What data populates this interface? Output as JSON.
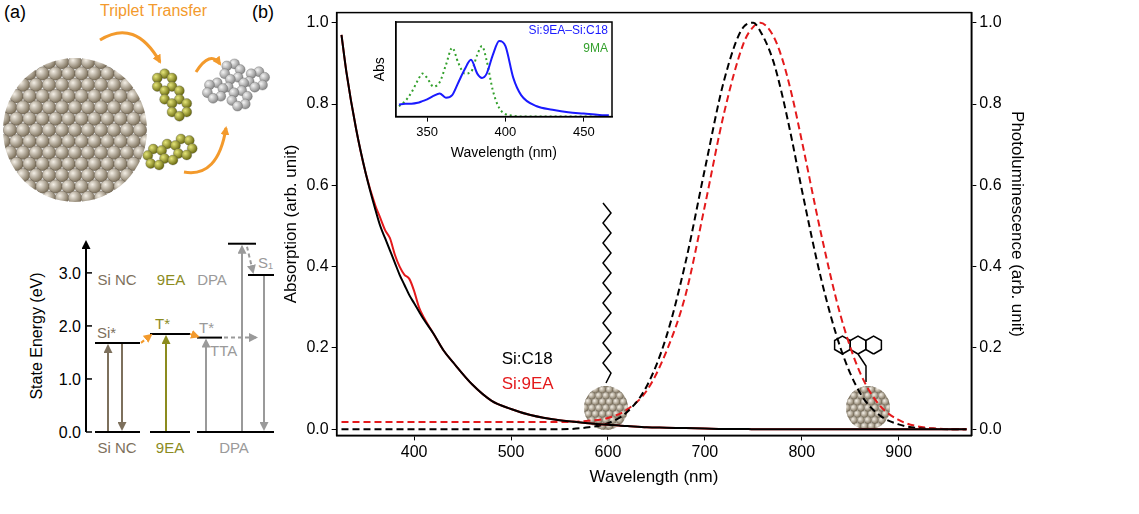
{
  "diagram": {
    "panel": "(a)",
    "annotation": "Triplet Transfer",
    "axis": {
      "title": "State Energy (eV)",
      "ylim": [
        0,
        3.62
      ],
      "yticks": [
        {
          "value": 0,
          "label": "0.0"
        },
        {
          "value": 1,
          "label": "1.0"
        },
        {
          "value": 2,
          "label": "2.0"
        },
        {
          "value": 3,
          "label": "3.0"
        }
      ]
    },
    "columns": [
      {
        "name": "Si NC",
        "color": "#7d705c",
        "levels": [
          {
            "label": "Si*",
            "energy": 1.68
          }
        ]
      },
      {
        "name": "9EA",
        "color": "#8c8c1e",
        "levels": [
          {
            "label": "T*",
            "energy": 1.85
          }
        ]
      },
      {
        "name": "DPA",
        "color": "#9a9a9a",
        "levels": [
          {
            "label": "T*",
            "energy": 1.78,
            "process": "TTA"
          },
          {
            "label": "S₁",
            "energy": 2.96
          },
          {
            "energy": 3.55
          }
        ]
      }
    ]
  },
  "chart_data": [
    {
      "type": "line",
      "panel": "(b)",
      "xlabel": "Wavelength (nm)",
      "ylabel": "Absorption (arb. unit)",
      "y2label": "Photoluminescence (arb. unit)",
      "x": [
        325,
        330,
        340,
        350,
        360,
        365,
        370,
        375,
        380,
        385,
        390,
        395,
        400,
        405,
        410,
        420,
        430,
        440,
        460,
        480,
        500,
        520,
        550,
        580,
        600,
        620,
        640,
        660,
        680,
        700,
        720,
        740,
        750,
        757,
        770,
        780,
        790,
        800,
        820,
        840,
        860,
        880,
        900,
        920,
        940,
        960,
        970
      ],
      "xlim": [
        320,
        975
      ],
      "xticks": [
        400,
        500,
        600,
        700,
        800,
        900
      ],
      "ylim": [
        -0.015,
        1.025
      ],
      "yticks": [
        {
          "value": 0,
          "label": "0.0"
        },
        {
          "value": 0.2,
          "label": "0.2"
        },
        {
          "value": 0.4,
          "label": "0.4"
        },
        {
          "value": 0.6,
          "label": "0.6"
        },
        {
          "value": 0.8,
          "label": "0.8"
        },
        {
          "value": 1,
          "label": "1.0"
        }
      ],
      "y2lim": [
        -0.015,
        1.025
      ],
      "y2ticks": [
        {
          "value": 0,
          "label": "0.0"
        },
        {
          "value": 0.2,
          "label": "0.2"
        },
        {
          "value": 0.4,
          "label": "0.4"
        },
        {
          "value": 0.6,
          "label": "0.6"
        },
        {
          "value": 0.8,
          "label": "0.8"
        },
        {
          "value": 1,
          "label": "1.0"
        }
      ],
      "grid": false,
      "legend": "lower left",
      "series": [
        {
          "name": "Si:C18",
          "color": "#000000",
          "line_style": "solid",
          "values": [
            0.97,
            0.88,
            0.74,
            0.63,
            0.54,
            0.5,
            0.47,
            0.44,
            0.41,
            0.38,
            0.355,
            0.33,
            0.31,
            0.29,
            0.27,
            0.235,
            0.195,
            0.165,
            0.11,
            0.07,
            0.05,
            0.035,
            0.022,
            0.015,
            0.011,
            0.008,
            0.005,
            0.004,
            0.003,
            0.002,
            0.001,
            0.001,
            0,
            0,
            0,
            0,
            0,
            0,
            0,
            0,
            0,
            0,
            0,
            0,
            0,
            0,
            0
          ]
        },
        {
          "name": "Si:9EA",
          "color": "#e41a1c",
          "line_style": "solid",
          "values": [
            0.97,
            0.88,
            0.74,
            0.63,
            0.55,
            0.52,
            0.49,
            0.47,
            0.43,
            0.4,
            0.38,
            0.37,
            0.34,
            0.3,
            0.275,
            0.235,
            0.195,
            0.165,
            0.11,
            0.07,
            0.05,
            0.035,
            0.022,
            0.015,
            0.011,
            0.008,
            0.005,
            0.004,
            0.003,
            0.002,
            0.001,
            0.001,
            0,
            0,
            0,
            0,
            0,
            0,
            0,
            0,
            0,
            0,
            0,
            0,
            0,
            0,
            0
          ]
        },
        {
          "name": "Si:C18",
          "color": "#000000",
          "line_style": "dashed",
          "axis": "y2",
          "values": [
            0,
            0,
            0,
            0,
            0,
            0,
            0,
            0,
            0,
            0,
            0,
            0,
            0,
            0,
            0,
            0,
            0,
            0,
            0,
            0,
            0,
            0,
            0,
            0.005,
            0.015,
            0.043,
            0.106,
            0.226,
            0.41,
            0.64,
            0.86,
            0.99,
            1.0,
            0.98,
            0.91,
            0.82,
            0.71,
            0.59,
            0.37,
            0.2,
            0.09,
            0.035,
            0.012,
            0.003,
            0.001,
            0,
            0
          ]
        },
        {
          "name": "Si:9EA",
          "color": "#e41a1c",
          "line_style": "dashed",
          "axis": "y2",
          "values": [
            0.018,
            0.018,
            0.018,
            0.018,
            0.018,
            0.018,
            0.018,
            0.018,
            0.018,
            0.018,
            0.018,
            0.018,
            0.018,
            0.018,
            0.018,
            0.018,
            0.018,
            0.018,
            0.018,
            0.018,
            0.018,
            0.018,
            0.018,
            0.021,
            0.028,
            0.049,
            0.095,
            0.19,
            0.33,
            0.55,
            0.78,
            0.95,
            0.99,
            1.0,
            0.97,
            0.91,
            0.82,
            0.71,
            0.48,
            0.28,
            0.14,
            0.06,
            0.023,
            0.007,
            0.002,
            0,
            0
          ]
        }
      ]
    },
    {
      "type": "line",
      "xlabel": "Wavelength (nm)",
      "ylabel": "Abs",
      "x": [
        332,
        336,
        340,
        344,
        347,
        350,
        354,
        358,
        362,
        366,
        370,
        374,
        378,
        382,
        385,
        388,
        392,
        396,
        400,
        405,
        410,
        420,
        430,
        440,
        450,
        460,
        466
      ],
      "xlim": [
        330,
        468
      ],
      "xticks": [
        350,
        400,
        450
      ],
      "ylim": [
        0,
        1.1
      ],
      "tick_labels": "x",
      "grid": false,
      "legend": "upper right",
      "series": [
        {
          "name": "Si:9EA–Si:C18",
          "color": "#1a1aff",
          "line_style": "solid",
          "values": [
            0.14,
            0.15,
            0.15,
            0.16,
            0.18,
            0.2,
            0.24,
            0.27,
            0.22,
            0.25,
            0.4,
            0.55,
            0.66,
            0.5,
            0.45,
            0.5,
            0.72,
            0.88,
            0.82,
            0.45,
            0.25,
            0.12,
            0.08,
            0.05,
            0.035,
            0.02,
            0.015
          ]
        },
        {
          "name": "9MA",
          "color": "#33a02c",
          "line_style": "dotted",
          "values": [
            0.12,
            0.18,
            0.28,
            0.42,
            0.5,
            0.45,
            0.35,
            0.4,
            0.6,
            0.8,
            0.62,
            0.5,
            0.52,
            0.72,
            0.82,
            0.65,
            0.3,
            0.1,
            0.03,
            0.01,
            0,
            0,
            0,
            0,
            0,
            0,
            0
          ]
        }
      ]
    }
  ]
}
